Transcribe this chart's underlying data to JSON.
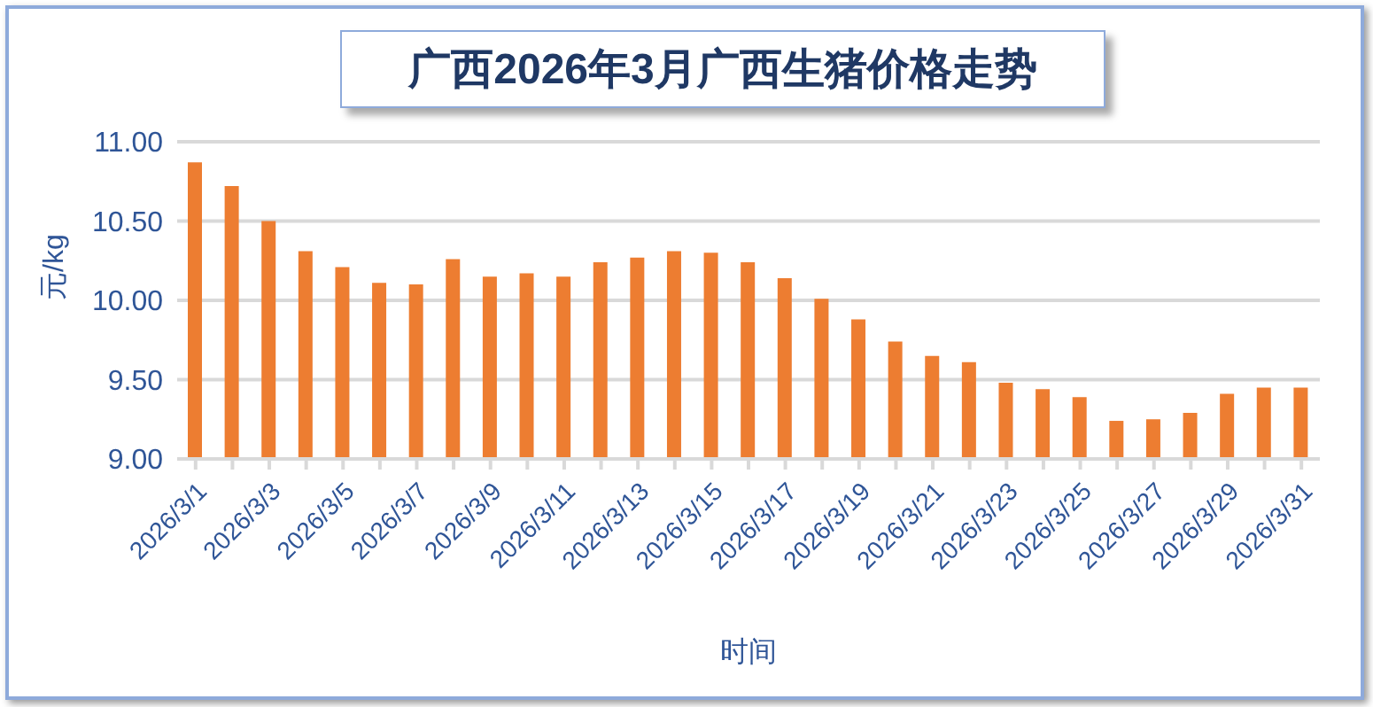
{
  "chart_data": {
    "type": "bar",
    "title": "广西2026年3月广西生猪价格走势",
    "xlabel": "时间",
    "ylabel": "元/kg",
    "categories": [
      "2026/3/1",
      null,
      "2026/3/3",
      null,
      "2026/3/5",
      null,
      "2026/3/7",
      null,
      "2026/3/9",
      null,
      "2026/3/11",
      null,
      "2026/3/13",
      null,
      "2026/3/15",
      null,
      "2026/3/17",
      null,
      "2026/3/19",
      null,
      "2026/3/21",
      null,
      "2026/3/23",
      null,
      "2026/3/25",
      null,
      "2026/3/27",
      null,
      "2026/3/29",
      null,
      "2026/3/31"
    ],
    "values": [
      10.87,
      10.72,
      10.5,
      10.31,
      10.21,
      10.11,
      10.1,
      10.26,
      10.15,
      10.17,
      10.15,
      10.24,
      10.27,
      10.31,
      10.3,
      10.24,
      10.14,
      10.01,
      9.88,
      9.74,
      9.65,
      9.61,
      9.48,
      9.44,
      9.39,
      9.24,
      9.25,
      9.29,
      9.41,
      9.45,
      9.45
    ],
    "color": "#ed7d31",
    "ylim": [
      9,
      11
    ],
    "yticks": [
      {
        "value": 9,
        "label": "9.00"
      },
      {
        "value": 9.5,
        "label": "9.50"
      },
      {
        "value": 10,
        "label": "10.00"
      },
      {
        "value": 10.5,
        "label": "10.50"
      },
      {
        "value": 11,
        "label": "11.00"
      }
    ],
    "grid": "y"
  }
}
